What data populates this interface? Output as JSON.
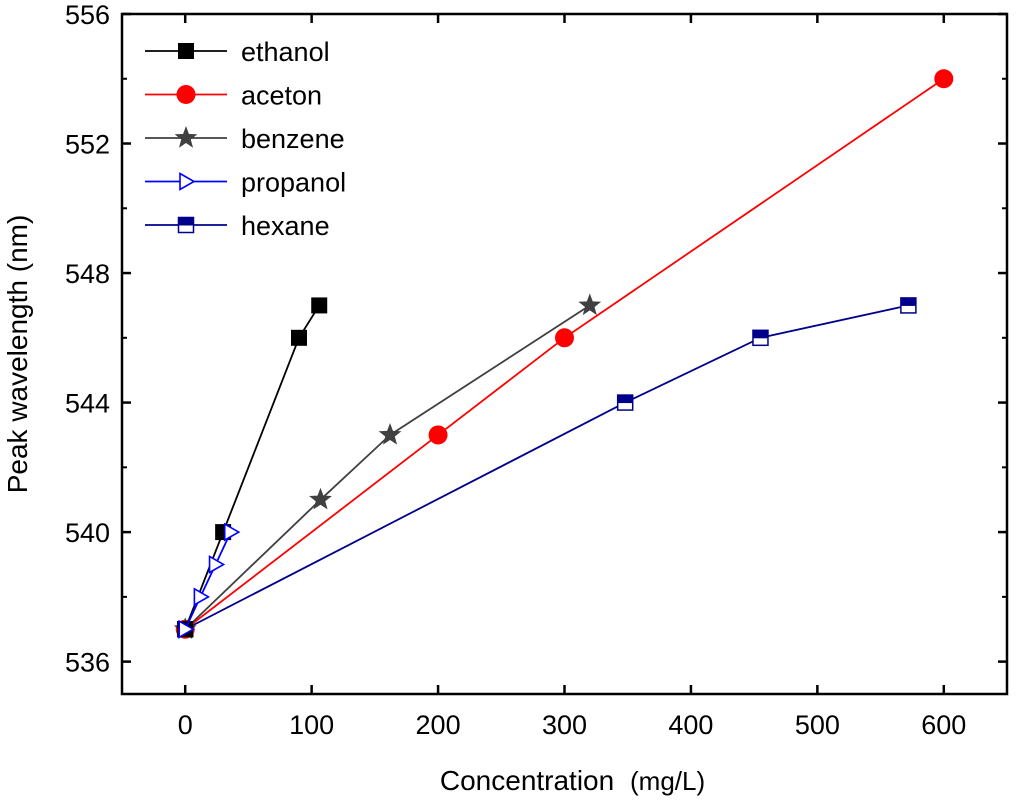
{
  "chart_data": {
    "type": "line",
    "title": "",
    "xlabel": "Concentration",
    "xlabel_unit": "(mg/L)",
    "ylabel": "Peak wavelength (nm)",
    "xlim": [
      -50,
      650
    ],
    "ylim": [
      535,
      556
    ],
    "x_ticks": [
      0,
      100,
      200,
      300,
      400,
      500,
      600
    ],
    "y_ticks": [
      536,
      540,
      544,
      548,
      552,
      556
    ],
    "grid": false,
    "legend_position": "top-left",
    "series": [
      {
        "name": "ethanol",
        "color": "#000000",
        "marker": "square-filled",
        "x": [
          0,
          30,
          90,
          106
        ],
        "y": [
          537,
          540,
          546,
          547
        ]
      },
      {
        "name": "aceton",
        "color": "#ff0000",
        "marker": "circle-filled",
        "x": [
          0,
          200,
          300,
          600
        ],
        "y": [
          537,
          543,
          546,
          554
        ]
      },
      {
        "name": "benzene",
        "color": "#404040",
        "marker": "star",
        "x": [
          0,
          107,
          162,
          320
        ],
        "y": [
          537,
          541,
          543,
          547
        ]
      },
      {
        "name": "propanol",
        "color": "#0000ff",
        "marker": "triangle-right-open",
        "x": [
          0,
          12,
          24,
          36
        ],
        "y": [
          537,
          538,
          539,
          540
        ]
      },
      {
        "name": "hexane",
        "color": "#00008b",
        "marker": "square-half",
        "x": [
          0,
          348,
          455,
          572
        ],
        "y": [
          537,
          544,
          546,
          547
        ]
      }
    ]
  }
}
